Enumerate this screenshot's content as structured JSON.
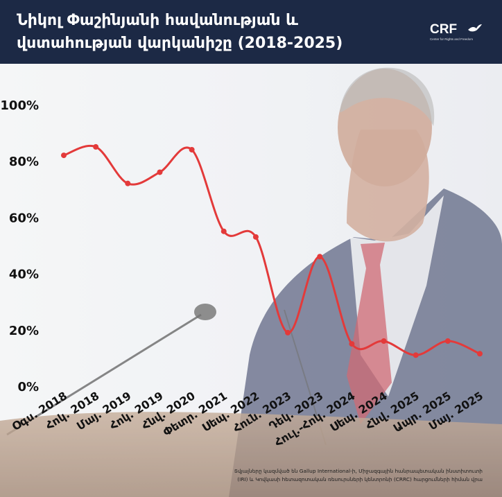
{
  "header": {
    "title_line1": "Նիկոլ Փաշինյանի հավանության և",
    "title_line2": "վստահության վարկանիշը (2018-2025)",
    "logo_text": "CRF",
    "logo_subtitle": "Center for Rights and Freedom"
  },
  "colors": {
    "header_bg": "#1c2945",
    "line": "#e33a3a",
    "text": "#111111"
  },
  "chart_data": {
    "type": "line",
    "title": "Նիկոլ Փաշինյանի հավանության և վստահության վարկանիշը (2018-2025)",
    "xlabel": "",
    "ylabel": "",
    "ylim": [
      0,
      100
    ],
    "yticks": [
      "0%",
      "20%",
      "40%",
      "60%",
      "80%",
      "100%"
    ],
    "grid": false,
    "legend": "none",
    "categories": [
      "Օգս. 2018",
      "Հոկ. 2018",
      "Մայ. 2019",
      "Հոկ. 2019",
      "Հնվ. 2020",
      "Փետր. 2021",
      "Սեպ. 2022",
      "Հուն. 2023",
      "Դեկ. 2023",
      "Հուլ.-Հոկ. 2024",
      "Սեպ. 2024",
      "Հնվ. 2025",
      "Ապր. 2025",
      "Մայ. 2025"
    ],
    "series": [
      {
        "values": [
          82,
          85,
          72,
          76,
          84,
          55,
          53,
          19,
          46,
          15,
          16,
          11,
          16,
          11.5
        ]
      }
    ]
  },
  "source_note": {
    "line1": "Տվյալները կազմված են Gallup International-ի, Միջազգային հանրապետական ինստիտուտի",
    "line2": "(IRI) և Կովկասի հետազոտական ռեսուրսների կենտրոնի (CRRC) հարցումների հիման վրա"
  }
}
